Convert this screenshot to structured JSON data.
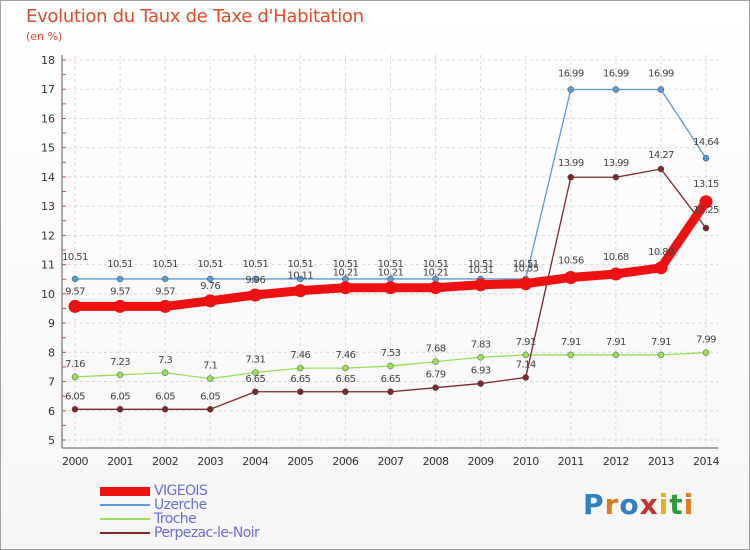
{
  "title": "Evolution du Taux de Taxe d'Habitation",
  "subtitle": "(en %)",
  "brand": {
    "letters": [
      "P",
      "r",
      "o",
      "x",
      "i",
      "t",
      "i"
    ],
    "colors": [
      "#2e7fc3",
      "#e07a1e",
      "#2e7fc3",
      "#c93030",
      "#e0b020",
      "#2e9a3c",
      "#e07a1e"
    ]
  },
  "chart_data": {
    "type": "line",
    "x": [
      2000,
      2001,
      2002,
      2003,
      2004,
      2005,
      2006,
      2007,
      2008,
      2009,
      2010,
      2011,
      2012,
      2013,
      2014
    ],
    "ylim": [
      5,
      18
    ],
    "yticks": [
      5,
      6,
      7,
      8,
      9,
      10,
      11,
      12,
      13,
      14,
      15,
      16,
      17,
      18
    ],
    "grid": true,
    "legend_placement": "bottom-left",
    "series": [
      {
        "name": "VIGEOIS",
        "color": "#ee1111",
        "values": [
          9.57,
          9.57,
          9.57,
          9.76,
          9.96,
          10.11,
          10.21,
          10.21,
          10.21,
          10.31,
          10.35,
          10.56,
          10.68,
          10.89,
          13.15
        ],
        "labels": [
          "9.57",
          "9.57",
          "9.57",
          "9.76",
          "9.96",
          "10.11",
          "10.21",
          "10.21",
          "10.21",
          "10.31",
          "10.35",
          "10.56",
          "10.68",
          "10.89",
          "13.15"
        ]
      },
      {
        "name": "Uzerche",
        "color": "#5b9bd5",
        "values": [
          10.51,
          10.51,
          10.51,
          10.51,
          10.51,
          10.51,
          10.51,
          10.51,
          10.51,
          10.51,
          10.51,
          16.99,
          16.99,
          16.99,
          14.64
        ],
        "labels": [
          "10.51",
          "10.51",
          "10.51",
          "10.51",
          "10.51",
          "10.51",
          "10.51",
          "10.51",
          "10.51",
          "10.51",
          "10.51",
          "16.99",
          "16.99",
          "16.99",
          "14.64"
        ]
      },
      {
        "name": "Troche",
        "color": "#99e05a",
        "values": [
          7.16,
          7.23,
          7.3,
          7.1,
          7.31,
          7.46,
          7.46,
          7.53,
          7.68,
          7.83,
          7.91,
          7.91,
          7.91,
          7.91,
          7.99
        ],
        "labels": [
          "7.16",
          "7.23",
          "7.3",
          "7.1",
          "7.31",
          "7.46",
          "7.46",
          "7.53",
          "7.68",
          "7.83",
          "7.91",
          "7.91",
          "7.91",
          "7.91",
          "7.99"
        ]
      },
      {
        "name": "Perpezac-le-Noir",
        "color": "#7b2a2a",
        "values": [
          6.05,
          6.05,
          6.05,
          6.05,
          6.65,
          6.65,
          6.65,
          6.65,
          6.79,
          6.93,
          7.14,
          13.99,
          13.99,
          14.27,
          12.25
        ],
        "labels": [
          "6.05",
          "6.05",
          "6.05",
          "6.05",
          "6.65",
          "6.65",
          "6.65",
          "6.65",
          "6.79",
          "6.93",
          "7.14",
          "13.99",
          "13.99",
          "14.27",
          "12.25"
        ]
      }
    ]
  }
}
